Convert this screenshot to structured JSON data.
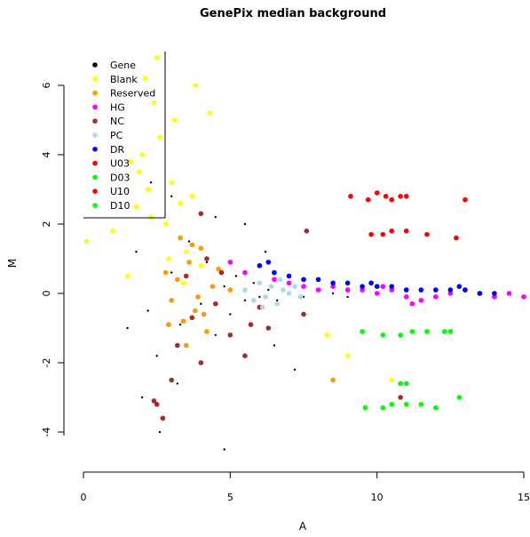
{
  "chart_data": {
    "type": "scatter",
    "title": "GenePix median background",
    "xlabel": "A",
    "ylabel": "M",
    "xlim": [
      0,
      15
    ],
    "ylim": [
      -5,
      7
    ],
    "x_ticks": [
      0,
      5,
      10,
      15
    ],
    "y_ticks": [
      -4,
      -2,
      0,
      2,
      4,
      6
    ],
    "grid": false,
    "legend_position": "top-left",
    "legend": [
      {
        "name": "Gene",
        "color": "#000000"
      },
      {
        "name": "Blank",
        "color": "#ffff00"
      },
      {
        "name": "Reserved",
        "color": "#ff9900"
      },
      {
        "name": "HG",
        "color": "#ff00ff"
      },
      {
        "name": "NC",
        "color": "#a52a2a"
      },
      {
        "name": "PC",
        "color": "#add8e6"
      },
      {
        "name": "DR",
        "color": "#0000ff"
      },
      {
        "name": "U03",
        "color": "#ff0000"
      },
      {
        "name": "D03",
        "color": "#00ff00"
      },
      {
        "name": "U10",
        "color": "#ff0000"
      },
      {
        "name": "D10",
        "color": "#00ff00"
      }
    ],
    "series": [
      {
        "name": "Gene",
        "color": "#000000",
        "points": [
          [
            1.8,
            1.2
          ],
          [
            2.2,
            -0.5
          ],
          [
            2.5,
            -1.8
          ],
          [
            3.0,
            0.6
          ],
          [
            3.3,
            -0.9
          ],
          [
            3.6,
            1.5
          ],
          [
            4.0,
            -0.3
          ],
          [
            4.2,
            0.9
          ],
          [
            4.5,
            -1.2
          ],
          [
            4.8,
            0.2
          ],
          [
            5.0,
            -0.6
          ],
          [
            5.2,
            0.5
          ],
          [
            5.5,
            -0.2
          ],
          [
            5.8,
            0.3
          ],
          [
            6.0,
            -0.1
          ],
          [
            6.3,
            0.1
          ],
          [
            6.6,
            -0.2
          ],
          [
            7.0,
            0.0
          ],
          [
            7.5,
            -0.1
          ],
          [
            8.0,
            0.1
          ],
          [
            8.5,
            0.0
          ],
          [
            9.0,
            -0.1
          ],
          [
            9.5,
            0.1
          ],
          [
            10.0,
            0.0
          ],
          [
            11.0,
            -0.1
          ],
          [
            12.0,
            0.1
          ],
          [
            2.0,
            -3.0
          ],
          [
            2.6,
            -4.0
          ],
          [
            3.2,
            -2.6
          ],
          [
            4.5,
            2.2
          ],
          [
            5.5,
            2.0
          ],
          [
            6.2,
            1.2
          ],
          [
            3.0,
            2.8
          ],
          [
            2.3,
            3.2
          ],
          [
            1.5,
            -1.0
          ],
          [
            6.5,
            -1.5
          ],
          [
            7.2,
            -2.2
          ],
          [
            4.8,
            -4.5
          ]
        ]
      },
      {
        "name": "Blank",
        "color": "#ffff00",
        "points": [
          [
            0.1,
            1.5
          ],
          [
            1.0,
            1.8
          ],
          [
            1.5,
            0.5
          ],
          [
            1.8,
            2.5
          ],
          [
            1.9,
            3.5
          ],
          [
            2.0,
            4.0
          ],
          [
            2.2,
            3.0
          ],
          [
            2.4,
            5.5
          ],
          [
            2.5,
            6.8
          ],
          [
            2.6,
            4.5
          ],
          [
            2.8,
            2.0
          ],
          [
            3.0,
            3.2
          ],
          [
            3.1,
            5.0
          ],
          [
            3.3,
            2.6
          ],
          [
            3.5,
            1.2
          ],
          [
            3.7,
            2.8
          ],
          [
            4.0,
            0.8
          ],
          [
            4.3,
            5.2
          ],
          [
            2.1,
            6.2
          ],
          [
            2.9,
            1.0
          ],
          [
            3.4,
            0.3
          ],
          [
            1.6,
            3.8
          ],
          [
            2.3,
            2.2
          ],
          [
            3.8,
            6.0
          ],
          [
            8.3,
            -1.2
          ],
          [
            10.5,
            -2.5
          ],
          [
            11.0,
            -3.2
          ],
          [
            9.0,
            -1.8
          ]
        ]
      },
      {
        "name": "Reserved",
        "color": "#ff9900",
        "points": [
          [
            3.0,
            -0.2
          ],
          [
            3.2,
            0.4
          ],
          [
            3.4,
            -0.8
          ],
          [
            3.6,
            0.9
          ],
          [
            3.8,
            -0.5
          ],
          [
            4.0,
            1.3
          ],
          [
            4.2,
            -1.1
          ],
          [
            4.4,
            0.2
          ],
          [
            3.5,
            -1.5
          ],
          [
            2.8,
            0.6
          ],
          [
            3.9,
            -0.1
          ],
          [
            4.6,
            0.7
          ],
          [
            3.3,
            1.6
          ],
          [
            4.1,
            -0.6
          ],
          [
            5.0,
            0.1
          ],
          [
            8.5,
            -2.5
          ],
          [
            3.7,
            1.4
          ],
          [
            2.9,
            -0.9
          ]
        ]
      },
      {
        "name": "HG",
        "color": "#ff00ff",
        "points": [
          [
            5.0,
            0.9
          ],
          [
            5.5,
            0.6
          ],
          [
            6.0,
            0.8
          ],
          [
            6.5,
            0.4
          ],
          [
            7.0,
            0.3
          ],
          [
            7.5,
            0.2
          ],
          [
            8.0,
            0.1
          ],
          [
            8.5,
            0.2
          ],
          [
            9.0,
            0.1
          ],
          [
            9.5,
            0.1
          ],
          [
            10.0,
            0.0
          ],
          [
            10.5,
            0.1
          ],
          [
            11.0,
            -0.1
          ],
          [
            11.5,
            -0.2
          ],
          [
            12.0,
            -0.1
          ],
          [
            12.5,
            0.0
          ],
          [
            13.0,
            0.1
          ],
          [
            13.5,
            0.0
          ],
          [
            14.0,
            -0.1
          ],
          [
            14.5,
            0.0
          ],
          [
            15.0,
            -0.1
          ],
          [
            11.2,
            -0.3
          ],
          [
            10.2,
            0.2
          ]
        ]
      },
      {
        "name": "NC",
        "color": "#a52a2a",
        "points": [
          [
            2.5,
            -3.2
          ],
          [
            2.7,
            -3.6
          ],
          [
            3.0,
            -2.5
          ],
          [
            3.2,
            -1.5
          ],
          [
            3.5,
            0.5
          ],
          [
            3.7,
            -0.7
          ],
          [
            4.0,
            -2.0
          ],
          [
            4.2,
            1.0
          ],
          [
            4.5,
            -0.3
          ],
          [
            4.7,
            0.6
          ],
          [
            5.0,
            -1.2
          ],
          [
            5.5,
            -1.8
          ],
          [
            6.0,
            -0.4
          ],
          [
            6.3,
            -1.0
          ],
          [
            7.5,
            -0.6
          ],
          [
            7.6,
            1.8
          ],
          [
            10.8,
            -3.0
          ],
          [
            4.0,
            2.3
          ],
          [
            2.4,
            -3.1
          ],
          [
            5.7,
            -0.9
          ]
        ]
      },
      {
        "name": "PC",
        "color": "#add8e6",
        "points": [
          [
            5.5,
            0.1
          ],
          [
            5.8,
            -0.2
          ],
          [
            6.0,
            0.3
          ],
          [
            6.2,
            -0.1
          ],
          [
            6.4,
            0.2
          ],
          [
            6.6,
            -0.3
          ],
          [
            6.8,
            0.1
          ],
          [
            7.0,
            0.0
          ],
          [
            7.2,
            0.2
          ],
          [
            7.4,
            -0.1
          ],
          [
            6.1,
            -0.4
          ],
          [
            6.7,
            0.4
          ]
        ]
      },
      {
        "name": "DR",
        "color": "#0000ff",
        "points": [
          [
            6.0,
            0.8
          ],
          [
            6.5,
            0.6
          ],
          [
            7.0,
            0.5
          ],
          [
            7.5,
            0.4
          ],
          [
            8.0,
            0.4
          ],
          [
            8.5,
            0.3
          ],
          [
            9.0,
            0.3
          ],
          [
            9.5,
            0.2
          ],
          [
            10.0,
            0.2
          ],
          [
            10.5,
            0.2
          ],
          [
            11.0,
            0.1
          ],
          [
            11.5,
            0.1
          ],
          [
            12.0,
            0.1
          ],
          [
            12.5,
            0.1
          ],
          [
            13.0,
            0.1
          ],
          [
            13.5,
            0.0
          ],
          [
            14.0,
            0.0
          ],
          [
            6.3,
            0.9
          ],
          [
            9.8,
            0.3
          ],
          [
            12.8,
            0.2
          ]
        ]
      },
      {
        "name": "U03",
        "color": "#ff0000",
        "points": [
          [
            9.1,
            2.8
          ],
          [
            9.7,
            2.7
          ],
          [
            10.0,
            2.9
          ],
          [
            10.3,
            2.8
          ],
          [
            10.5,
            2.7
          ],
          [
            10.8,
            2.8
          ],
          [
            11.0,
            2.8
          ],
          [
            13.0,
            2.7
          ],
          [
            9.8,
            1.7
          ],
          [
            10.2,
            1.7
          ],
          [
            10.5,
            1.8
          ],
          [
            11.0,
            1.8
          ],
          [
            11.7,
            1.7
          ],
          [
            12.7,
            1.6
          ]
        ]
      },
      {
        "name": "D03",
        "color": "#00ff00",
        "points": [
          [
            9.5,
            -1.1
          ],
          [
            10.2,
            -1.2
          ],
          [
            10.8,
            -1.2
          ],
          [
            11.2,
            -1.1
          ],
          [
            11.7,
            -1.1
          ],
          [
            12.3,
            -1.1
          ],
          [
            12.5,
            -1.1
          ],
          [
            9.6,
            -3.3
          ],
          [
            10.2,
            -3.3
          ],
          [
            10.5,
            -3.2
          ],
          [
            11.0,
            -3.2
          ],
          [
            11.5,
            -3.2
          ],
          [
            12.0,
            -3.3
          ],
          [
            12.8,
            -3.0
          ],
          [
            10.8,
            -2.6
          ],
          [
            11.0,
            -2.6
          ]
        ]
      }
    ]
  }
}
